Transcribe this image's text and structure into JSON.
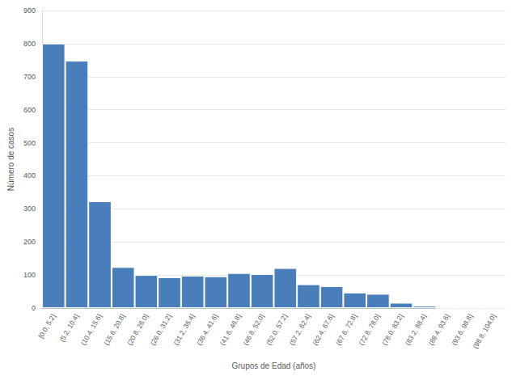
{
  "chart_data": {
    "type": "bar",
    "x_label": "Grupos de Edad (años)",
    "y_label": "Número de casos",
    "categories": [
      "[0.0, 5.2]",
      "(5.2, 10.4]",
      "(10.4, 15.6]",
      "(15.6, 20.8]",
      "(20.8, 26.0]",
      "(26.0, 31.2]",
      "(31.2, 36.4]",
      "(36.4, 41.6]",
      "(41.6, 46.8]",
      "(46.8, 52.0]",
      "(52.0, 57.2]",
      "(57.2, 62.4]",
      "(62.4, 67.6]",
      "(67.6, 72.8]",
      "(72.8, 78.0]",
      "(78.0, 83.2]",
      "(83.2, 88.4]",
      "(88.4, 93.6]",
      "(93.6, 98.8]",
      "(98.8, 104.0]"
    ],
    "values": [
      800,
      748,
      323,
      124,
      100,
      93,
      98,
      96,
      106,
      103,
      121,
      72,
      66,
      47,
      43,
      16,
      7,
      0,
      0,
      0
    ],
    "color": "#4a7ebb",
    "ylim": [
      0,
      900
    ],
    "yticks": [
      0,
      100,
      200,
      300,
      400,
      500,
      600,
      700,
      800,
      900
    ],
    "grid": true
  }
}
